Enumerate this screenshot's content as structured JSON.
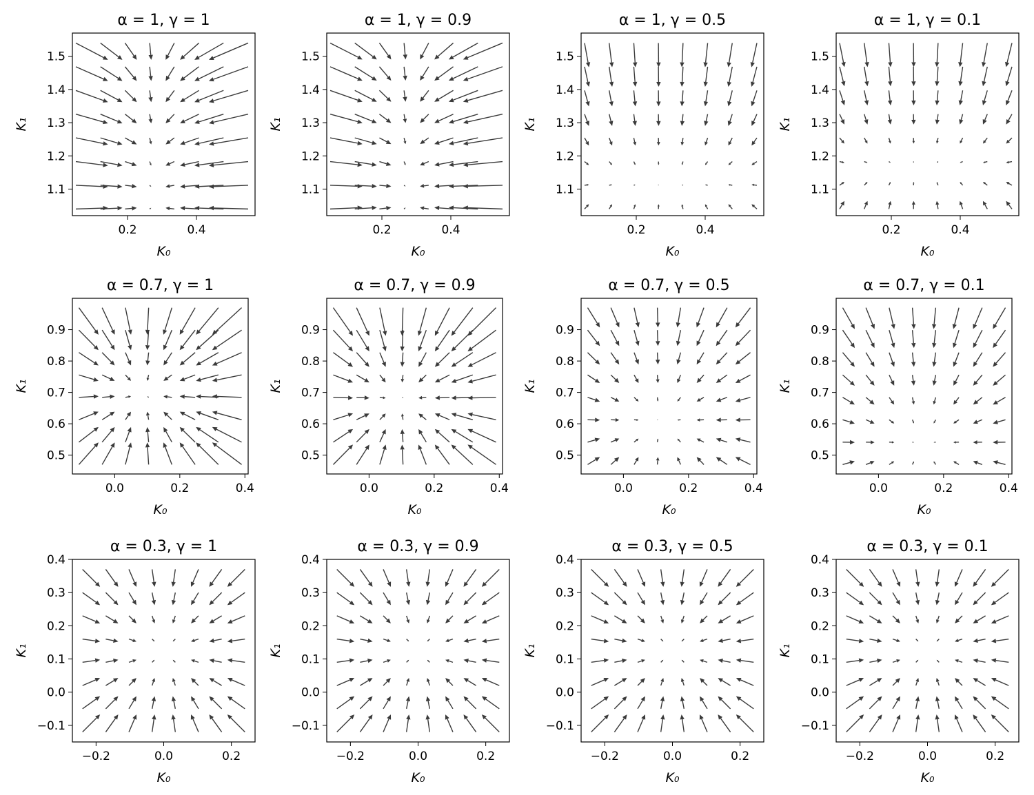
{
  "chart_data": [
    {
      "type": "quiver",
      "title": "α = 1, γ = 1",
      "xlabel": "K₀",
      "ylabel": "K₁",
      "x_range": [
        0.05,
        0.55
      ],
      "y_range": [
        1.04,
        1.54
      ],
      "xlim": [
        0.04,
        0.57
      ],
      "ylim": [
        1.02,
        1.57
      ],
      "x_ticks": [
        0.2,
        0.4
      ],
      "y_ticks": [
        1.1,
        1.2,
        1.3,
        1.4,
        1.5
      ],
      "alpha": 1,
      "gamma": 1
    },
    {
      "type": "quiver",
      "title": "α = 1, γ = 0.9",
      "xlabel": "K₀",
      "ylabel": "K₁",
      "x_range": [
        0.05,
        0.55
      ],
      "y_range": [
        1.04,
        1.54
      ],
      "xlim": [
        0.04,
        0.57
      ],
      "ylim": [
        1.02,
        1.57
      ],
      "x_ticks": [
        0.2,
        0.4
      ],
      "y_ticks": [
        1.1,
        1.2,
        1.3,
        1.4,
        1.5
      ],
      "alpha": 1,
      "gamma": 0.9
    },
    {
      "type": "quiver",
      "title": "α = 1, γ = 0.5",
      "xlabel": "K₀",
      "ylabel": "K₁",
      "x_range": [
        0.05,
        0.55
      ],
      "y_range": [
        1.04,
        1.54
      ],
      "xlim": [
        0.04,
        0.57
      ],
      "ylim": [
        1.02,
        1.57
      ],
      "x_ticks": [
        0.2,
        0.4
      ],
      "y_ticks": [
        1.1,
        1.2,
        1.3,
        1.4,
        1.5
      ],
      "alpha": 1,
      "gamma": 0.5
    },
    {
      "type": "quiver",
      "title": "α = 1, γ = 0.1",
      "xlabel": "K₀",
      "ylabel": "K₁",
      "x_range": [
        0.05,
        0.55
      ],
      "y_range": [
        1.04,
        1.54
      ],
      "xlim": [
        0.04,
        0.57
      ],
      "ylim": [
        1.02,
        1.57
      ],
      "x_ticks": [
        0.2,
        0.4
      ],
      "y_ticks": [
        1.1,
        1.2,
        1.3,
        1.4,
        1.5
      ],
      "alpha": 1,
      "gamma": 0.1
    },
    {
      "type": "quiver",
      "title": "α = 0.7, γ = 1",
      "xlabel": "K₀",
      "ylabel": "K₁",
      "x_range": [
        -0.11,
        0.39
      ],
      "y_range": [
        0.47,
        0.97
      ],
      "xlim": [
        -0.13,
        0.41
      ],
      "ylim": [
        0.44,
        1.0
      ],
      "x_ticks": [
        0.0,
        0.2,
        0.4
      ],
      "y_ticks": [
        0.5,
        0.6,
        0.7,
        0.8,
        0.9
      ],
      "alpha": 0.7,
      "gamma": 1
    },
    {
      "type": "quiver",
      "title": "α = 0.7, γ = 0.9",
      "xlabel": "K₀",
      "ylabel": "K₁",
      "x_range": [
        -0.11,
        0.39
      ],
      "y_range": [
        0.47,
        0.97
      ],
      "xlim": [
        -0.13,
        0.41
      ],
      "ylim": [
        0.44,
        1.0
      ],
      "x_ticks": [
        0.0,
        0.2,
        0.4
      ],
      "y_ticks": [
        0.5,
        0.6,
        0.7,
        0.8,
        0.9
      ],
      "alpha": 0.7,
      "gamma": 0.9
    },
    {
      "type": "quiver",
      "title": "α = 0.7, γ = 0.5",
      "xlabel": "K₀",
      "ylabel": "K₁",
      "x_range": [
        -0.11,
        0.39
      ],
      "y_range": [
        0.47,
        0.97
      ],
      "xlim": [
        -0.13,
        0.41
      ],
      "ylim": [
        0.44,
        1.0
      ],
      "x_ticks": [
        0.0,
        0.2,
        0.4
      ],
      "y_ticks": [
        0.5,
        0.6,
        0.7,
        0.8,
        0.9
      ],
      "alpha": 0.7,
      "gamma": 0.5
    },
    {
      "type": "quiver",
      "title": "α = 0.7, γ = 0.1",
      "xlabel": "K₀",
      "ylabel": "K₁",
      "x_range": [
        -0.11,
        0.39
      ],
      "y_range": [
        0.47,
        0.97
      ],
      "xlim": [
        -0.13,
        0.41
      ],
      "ylim": [
        0.44,
        1.0
      ],
      "x_ticks": [
        0.0,
        0.2,
        0.4
      ],
      "y_ticks": [
        0.5,
        0.6,
        0.7,
        0.8,
        0.9
      ],
      "alpha": 0.7,
      "gamma": 0.1
    },
    {
      "type": "quiver",
      "title": "α = 0.3, γ = 1",
      "xlabel": "K₀",
      "ylabel": "K₁",
      "x_range": [
        -0.24,
        0.24
      ],
      "y_range": [
        -0.12,
        0.37
      ],
      "xlim": [
        -0.27,
        0.27
      ],
      "ylim": [
        -0.15,
        0.4
      ],
      "x_ticks": [
        -0.2,
        0.0,
        0.2
      ],
      "y_ticks": [
        -0.1,
        0.0,
        0.1,
        0.2,
        0.3,
        0.4
      ],
      "alpha": 0.3,
      "gamma": 1
    },
    {
      "type": "quiver",
      "title": "α = 0.3, γ = 0.9",
      "xlabel": "K₀",
      "ylabel": "K₁",
      "x_range": [
        -0.24,
        0.24
      ],
      "y_range": [
        -0.12,
        0.37
      ],
      "xlim": [
        -0.27,
        0.27
      ],
      "ylim": [
        -0.15,
        0.4
      ],
      "x_ticks": [
        -0.2,
        0.0,
        0.2
      ],
      "y_ticks": [
        -0.1,
        0.0,
        0.1,
        0.2,
        0.3,
        0.4
      ],
      "alpha": 0.3,
      "gamma": 0.9
    },
    {
      "type": "quiver",
      "title": "α = 0.3, γ = 0.5",
      "xlabel": "K₀",
      "ylabel": "K₁",
      "x_range": [
        -0.24,
        0.24
      ],
      "y_range": [
        -0.12,
        0.37
      ],
      "xlim": [
        -0.27,
        0.27
      ],
      "ylim": [
        -0.15,
        0.4
      ],
      "x_ticks": [
        -0.2,
        0.0,
        0.2
      ],
      "y_ticks": [
        -0.1,
        0.0,
        0.1,
        0.2,
        0.3,
        0.4
      ],
      "alpha": 0.3,
      "gamma": 0.5
    },
    {
      "type": "quiver",
      "title": "α = 0.3, γ = 0.1",
      "xlabel": "K₀",
      "ylabel": "K₁",
      "x_range": [
        -0.24,
        0.24
      ],
      "y_range": [
        -0.12,
        0.37
      ],
      "xlim": [
        -0.27,
        0.27
      ],
      "ylim": [
        -0.15,
        0.4
      ],
      "x_ticks": [
        -0.2,
        0.0,
        0.2
      ],
      "y_ticks": [
        -0.1,
        0.0,
        0.1,
        0.2,
        0.3,
        0.4
      ],
      "alpha": 0.3,
      "gamma": 0.1
    }
  ],
  "arrow_color": "#3a3a3a",
  "grid_size": 8,
  "grid": "off"
}
